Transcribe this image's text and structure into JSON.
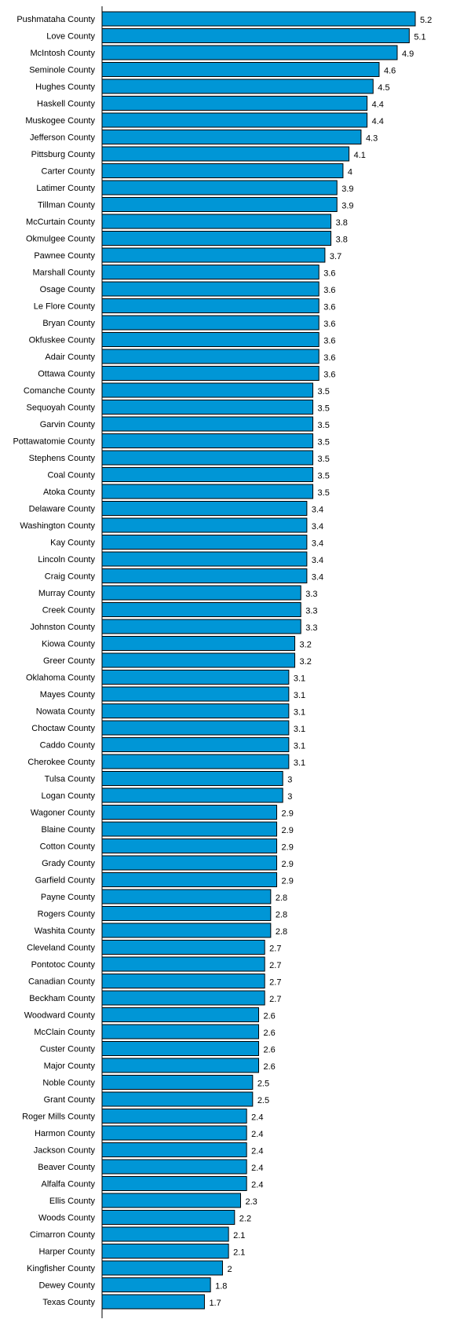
{
  "chart_data": {
    "type": "bar",
    "orientation": "horizontal",
    "categories": [
      "Pushmataha County",
      "Love County",
      "McIntosh County",
      "Seminole County",
      "Hughes County",
      "Haskell County",
      "Muskogee County",
      "Jefferson County",
      "Pittsburg County",
      "Carter County",
      "Latimer County",
      "Tillman County",
      "McCurtain County",
      "Okmulgee County",
      "Pawnee County",
      "Marshall County",
      "Osage County",
      "Le Flore County",
      "Bryan County",
      "Okfuskee County",
      "Adair County",
      "Ottawa County",
      "Comanche County",
      "Sequoyah County",
      "Garvin County",
      "Pottawatomie County",
      "Stephens County",
      "Coal County",
      "Atoka County",
      "Delaware County",
      "Washington County",
      "Kay County",
      "Lincoln County",
      "Craig County",
      "Murray County",
      "Creek County",
      "Johnston County",
      "Kiowa County",
      "Greer County",
      "Oklahoma County",
      "Mayes County",
      "Nowata County",
      "Choctaw County",
      "Caddo County",
      "Cherokee County",
      "Tulsa County",
      "Logan County",
      "Wagoner County",
      "Blaine County",
      "Cotton County",
      "Grady County",
      "Garfield County",
      "Payne County",
      "Rogers County",
      "Washita County",
      "Cleveland County",
      "Pontotoc County",
      "Canadian County",
      "Beckham County",
      "Woodward County",
      "McClain County",
      "Custer County",
      "Major County",
      "Noble County",
      "Grant County",
      "Roger Mills County",
      "Harmon County",
      "Jackson County",
      "Beaver County",
      "Alfalfa County",
      "Ellis County",
      "Woods County",
      "Cimarron County",
      "Harper County",
      "Kingfisher County",
      "Dewey County",
      "Texas County"
    ],
    "values": [
      5.2,
      5.1,
      4.9,
      4.6,
      4.5,
      4.4,
      4.4,
      4.3,
      4.1,
      4,
      3.9,
      3.9,
      3.8,
      3.8,
      3.7,
      3.6,
      3.6,
      3.6,
      3.6,
      3.6,
      3.6,
      3.6,
      3.5,
      3.5,
      3.5,
      3.5,
      3.5,
      3.5,
      3.5,
      3.4,
      3.4,
      3.4,
      3.4,
      3.4,
      3.3,
      3.3,
      3.3,
      3.2,
      3.2,
      3.1,
      3.1,
      3.1,
      3.1,
      3.1,
      3.1,
      3,
      3,
      2.9,
      2.9,
      2.9,
      2.9,
      2.9,
      2.8,
      2.8,
      2.8,
      2.7,
      2.7,
      2.7,
      2.7,
      2.6,
      2.6,
      2.6,
      2.6,
      2.5,
      2.5,
      2.4,
      2.4,
      2.4,
      2.4,
      2.4,
      2.3,
      2.2,
      2.1,
      2.1,
      2,
      1.8,
      1.7
    ],
    "title": "",
    "xlabel": "",
    "ylabel": "",
    "xlim": [
      0,
      5.2
    ],
    "grid": false,
    "legend": "none",
    "data_labels": true,
    "bar_color": "#0096d6",
    "bar_border_color": "#000000"
  }
}
